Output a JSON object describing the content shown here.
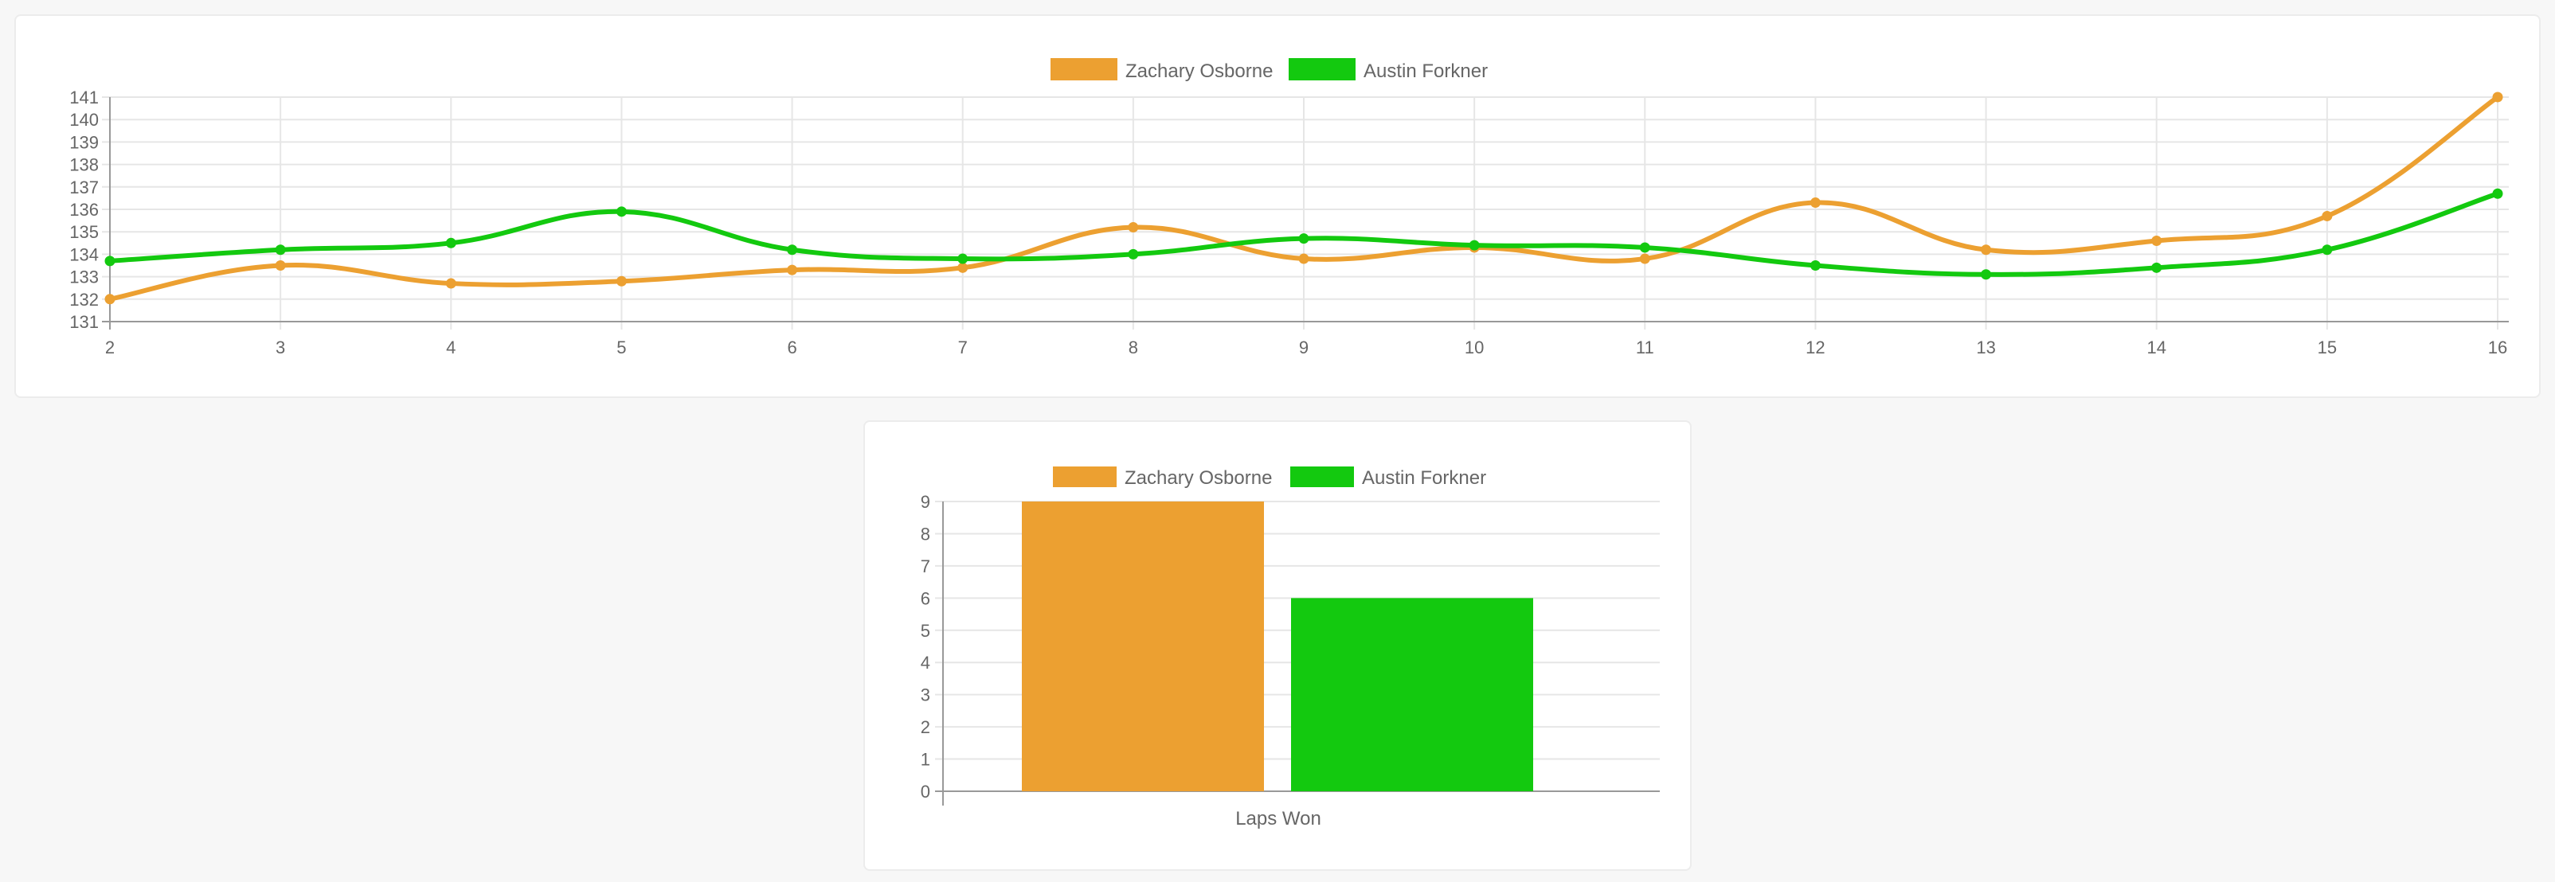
{
  "colors": {
    "zachary": "#eca031",
    "austin": "#13c90f",
    "grid": "#e6e6e6",
    "axis": "#999999",
    "text": "#666666"
  },
  "legend": {
    "series_1": "Zachary Osborne",
    "series_2": "Austin Forkner"
  },
  "chart_data": [
    {
      "type": "line",
      "x": [
        2,
        3,
        4,
        5,
        6,
        7,
        8,
        9,
        10,
        11,
        12,
        13,
        14,
        15,
        16
      ],
      "ylim": [
        131,
        141
      ],
      "yticks": [
        131,
        132,
        133,
        134,
        135,
        136,
        137,
        138,
        139,
        140,
        141
      ],
      "legend_position": "top-center",
      "grid": true,
      "series": [
        {
          "name": "Zachary Osborne",
          "color": "#eca031",
          "values": [
            132.0,
            133.5,
            132.7,
            132.8,
            133.3,
            133.4,
            135.2,
            133.8,
            134.3,
            133.8,
            136.3,
            134.2,
            134.6,
            135.7,
            141.0
          ]
        },
        {
          "name": "Austin Forkner",
          "color": "#13c90f",
          "values": [
            133.7,
            134.2,
            134.5,
            135.9,
            134.2,
            133.8,
            134.0,
            134.7,
            134.4,
            134.3,
            133.5,
            133.1,
            133.4,
            134.2,
            136.7
          ]
        }
      ]
    },
    {
      "type": "bar",
      "categories": [
        "Laps Won"
      ],
      "ylim": [
        0,
        9
      ],
      "yticks": [
        0,
        1,
        2,
        3,
        4,
        5,
        6,
        7,
        8,
        9
      ],
      "legend_position": "top-center",
      "grid": true,
      "series": [
        {
          "name": "Zachary Osborne",
          "color": "#eca031",
          "values": [
            9
          ]
        },
        {
          "name": "Austin Forkner",
          "color": "#13c90f",
          "values": [
            6
          ]
        }
      ]
    }
  ]
}
